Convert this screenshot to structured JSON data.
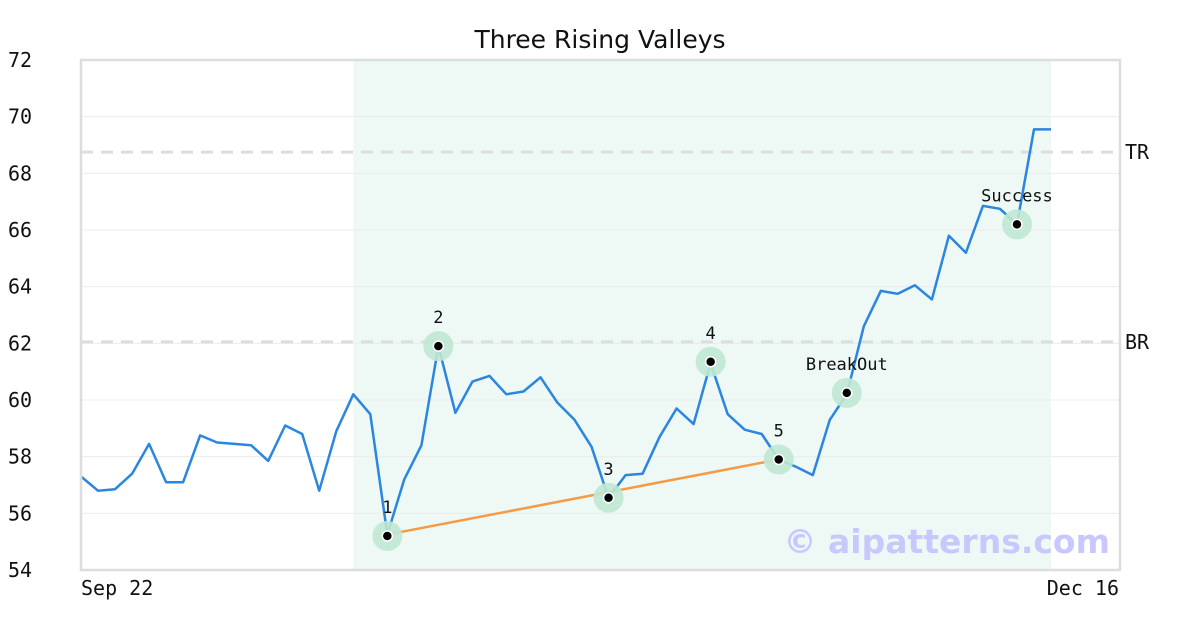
{
  "chart_data": {
    "type": "line",
    "title": "Three Rising Valleys",
    "x_start_label": "Sep 22",
    "x_end_label": "Dec 16",
    "ylim": [
      54,
      72
    ],
    "yticks": [
      54,
      56,
      58,
      60,
      62,
      64,
      66,
      68,
      70,
      72
    ],
    "grid": true,
    "colors": {
      "price": "#2a86e0",
      "trend": "#f59a45",
      "highlight_band": "#eef8f4",
      "marker_halo": "#bfe8d4",
      "marker_dot": "#000000",
      "level_line": "#dddddd",
      "frame": "#dddddd"
    },
    "series": [
      {
        "values": [
          57.3,
          56.8,
          56.85,
          57.4,
          58.45,
          57.1,
          57.1,
          58.75,
          58.5,
          58.45,
          58.4,
          57.85,
          59.1,
          58.8,
          56.8,
          58.9,
          60.2,
          59.5,
          55.25,
          57.2,
          58.4,
          61.9,
          59.55,
          60.65,
          60.85,
          60.2,
          60.3,
          60.8,
          59.9,
          59.3,
          58.35,
          56.55,
          57.35,
          57.4,
          58.7,
          59.7,
          59.15,
          61.3,
          59.5,
          58.95,
          58.8,
          57.9,
          57.65,
          57.35,
          59.3,
          60.2,
          62.6,
          63.85,
          63.75,
          64.05,
          63.55,
          65.8,
          65.2,
          66.85,
          66.75,
          66.2,
          69.55,
          69.55
        ]
      }
    ],
    "highlight_range": {
      "start_index": 16,
      "end_index": 57
    },
    "levels": [
      {
        "label": "TR",
        "value": 68.75
      },
      {
        "label": "BR",
        "value": 62.05
      }
    ],
    "trendline": {
      "from_index": 18,
      "from_value": 55.25,
      "to_index": 41,
      "to_value": 57.9
    },
    "markers": [
      {
        "label": "1",
        "index": 18,
        "value": 55.2,
        "label_pos": "above"
      },
      {
        "label": "2",
        "index": 21,
        "value": 61.9,
        "label_pos": "above"
      },
      {
        "label": "3",
        "index": 31,
        "value": 56.55,
        "label_pos": "above"
      },
      {
        "label": "4",
        "index": 37,
        "value": 61.35,
        "label_pos": "above"
      },
      {
        "label": "5",
        "index": 41,
        "value": 57.9,
        "label_pos": "above"
      },
      {
        "label": "BreakOut",
        "index": 45,
        "value": 60.25,
        "label_pos": "above"
      },
      {
        "label": "Success",
        "index": 55,
        "value": 66.2,
        "label_pos": "above"
      }
    ],
    "watermark": "© aipatterns.com"
  }
}
